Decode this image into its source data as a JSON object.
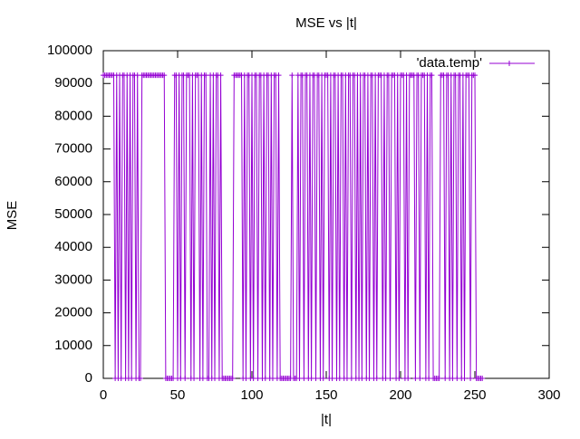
{
  "chart_data": {
    "type": "line",
    "title": "MSE vs |t|",
    "xlabel": "|t|",
    "ylabel": "MSE",
    "x": [
      0,
      1,
      2,
      3,
      4,
      5,
      6,
      7,
      8,
      9,
      10,
      11,
      12,
      13,
      14,
      15,
      16,
      17,
      18,
      19,
      20,
      21,
      22,
      23,
      24,
      25,
      26,
      27,
      28,
      29,
      30,
      31,
      32,
      33,
      34,
      35,
      36,
      37,
      38,
      39,
      40,
      41,
      42,
      43,
      44,
      45,
      46,
      47,
      48,
      49,
      50,
      51,
      52,
      53,
      54,
      55,
      56,
      57,
      58,
      59,
      60,
      61,
      62,
      63,
      64,
      65,
      66,
      67,
      68,
      69,
      70,
      71,
      72,
      73,
      74,
      75,
      76,
      77,
      78,
      79,
      80,
      81,
      82,
      83,
      84,
      85,
      86,
      87,
      88,
      89,
      90,
      91,
      92,
      93,
      94,
      95,
      96,
      97,
      98,
      99,
      100,
      101,
      102,
      103,
      104,
      105,
      106,
      107,
      108,
      109,
      110,
      111,
      112,
      113,
      114,
      115,
      116,
      117,
      118,
      119,
      120,
      121,
      122,
      123,
      124,
      125,
      126,
      127,
      128,
      129,
      130,
      131,
      132,
      133,
      134,
      135,
      136,
      137,
      138,
      139,
      140,
      141,
      142,
      143,
      144,
      145,
      146,
      147,
      148,
      149,
      150,
      151,
      152,
      153,
      154,
      155,
      156,
      157,
      158,
      159,
      160,
      161,
      162,
      163,
      164,
      165,
      166,
      167,
      168,
      169,
      170,
      171,
      172,
      173,
      174,
      175,
      176,
      177,
      178,
      179,
      180,
      181,
      182,
      183,
      184,
      185,
      186,
      187,
      188,
      189,
      190,
      191,
      192,
      193,
      194,
      195,
      196,
      197,
      198,
      199,
      200,
      201,
      202,
      203,
      204,
      205,
      206,
      207,
      208,
      209,
      210,
      211,
      212,
      213,
      214,
      215,
      216,
      217,
      218,
      219,
      220,
      221,
      222,
      223,
      224,
      225,
      226,
      227,
      228,
      229,
      230,
      231,
      232,
      233,
      234,
      235,
      236,
      237,
      238,
      239,
      240,
      241,
      242,
      243,
      244,
      245,
      246,
      247,
      248,
      249,
      250,
      251,
      252,
      253,
      254,
      255
    ],
    "series": [
      {
        "name": "'data.temp'",
        "color": "#9400d3",
        "values": [
          92500,
          92500,
          92500,
          92500,
          92500,
          92500,
          92500,
          92500,
          0,
          92500,
          0,
          92500,
          0,
          92500,
          92500,
          0,
          92500,
          0,
          92500,
          0,
          92500,
          92500,
          0,
          92500,
          0,
          0,
          92500,
          92500,
          92500,
          92500,
          92500,
          92500,
          92500,
          92500,
          92500,
          92500,
          92500,
          92500,
          92500,
          92500,
          92500,
          92500,
          0,
          0,
          0,
          0,
          0,
          0,
          92500,
          92500,
          0,
          92500,
          0,
          92500,
          92500,
          0,
          92500,
          92500,
          92500,
          0,
          92500,
          0,
          92500,
          92500,
          92500,
          0,
          92500,
          0,
          92500,
          92500,
          0,
          0,
          92500,
          0,
          92500,
          0,
          92500,
          92500,
          0,
          92500,
          0,
          0,
          0,
          0,
          0,
          0,
          0,
          0,
          92500,
          92500,
          92500,
          92500,
          92500,
          92500,
          0,
          92500,
          0,
          92500,
          92500,
          0,
          92500,
          0,
          92500,
          92500,
          0,
          92500,
          92500,
          0,
          92500,
          0,
          92500,
          92500,
          0,
          92500,
          0,
          92500,
          92500,
          0,
          92500,
          0,
          0,
          0,
          0,
          0,
          0,
          0,
          0,
          92500,
          0,
          0,
          0,
          92500,
          0,
          92500,
          92500,
          0,
          92500,
          92500,
          0,
          92500,
          0,
          92500,
          92500,
          0,
          92500,
          92500,
          0,
          92500,
          0,
          92500,
          92500,
          92500,
          0,
          92500,
          0,
          92500,
          92500,
          0,
          92500,
          0,
          92500,
          92500,
          0,
          92500,
          0,
          92500,
          92500,
          0,
          92500,
          92500,
          0,
          92500,
          0,
          92500,
          0,
          92500,
          92500,
          0,
          92500,
          0,
          92500,
          92500,
          0,
          92500,
          0,
          92500,
          92500,
          92500,
          0,
          92500,
          0,
          92500,
          92500,
          0,
          92500,
          92500,
          92500,
          0,
          92500,
          0,
          92500,
          92500,
          92500,
          0,
          92500,
          0,
          92500,
          92500,
          92500,
          92500,
          0,
          92500,
          92500,
          0,
          92500,
          92500,
          92500,
          0,
          92500,
          0,
          92500,
          92500,
          0,
          0,
          0,
          0,
          0,
          92500,
          92500,
          92500,
          0,
          92500,
          92500,
          0,
          92500,
          0,
          92500,
          92500,
          0,
          92500,
          92500,
          0,
          92500,
          0,
          92500,
          92500,
          92500,
          0,
          92500,
          92500,
          92500,
          0,
          0,
          0,
          0,
          0
        ]
      }
    ],
    "xlim": [
      0,
      300
    ],
    "ylim": [
      0,
      100000
    ],
    "xticks": [
      0,
      50,
      100,
      150,
      200,
      250,
      300
    ],
    "yticks": [
      0,
      10000,
      20000,
      30000,
      40000,
      50000,
      60000,
      70000,
      80000,
      90000,
      100000
    ],
    "legend": "upper right"
  }
}
